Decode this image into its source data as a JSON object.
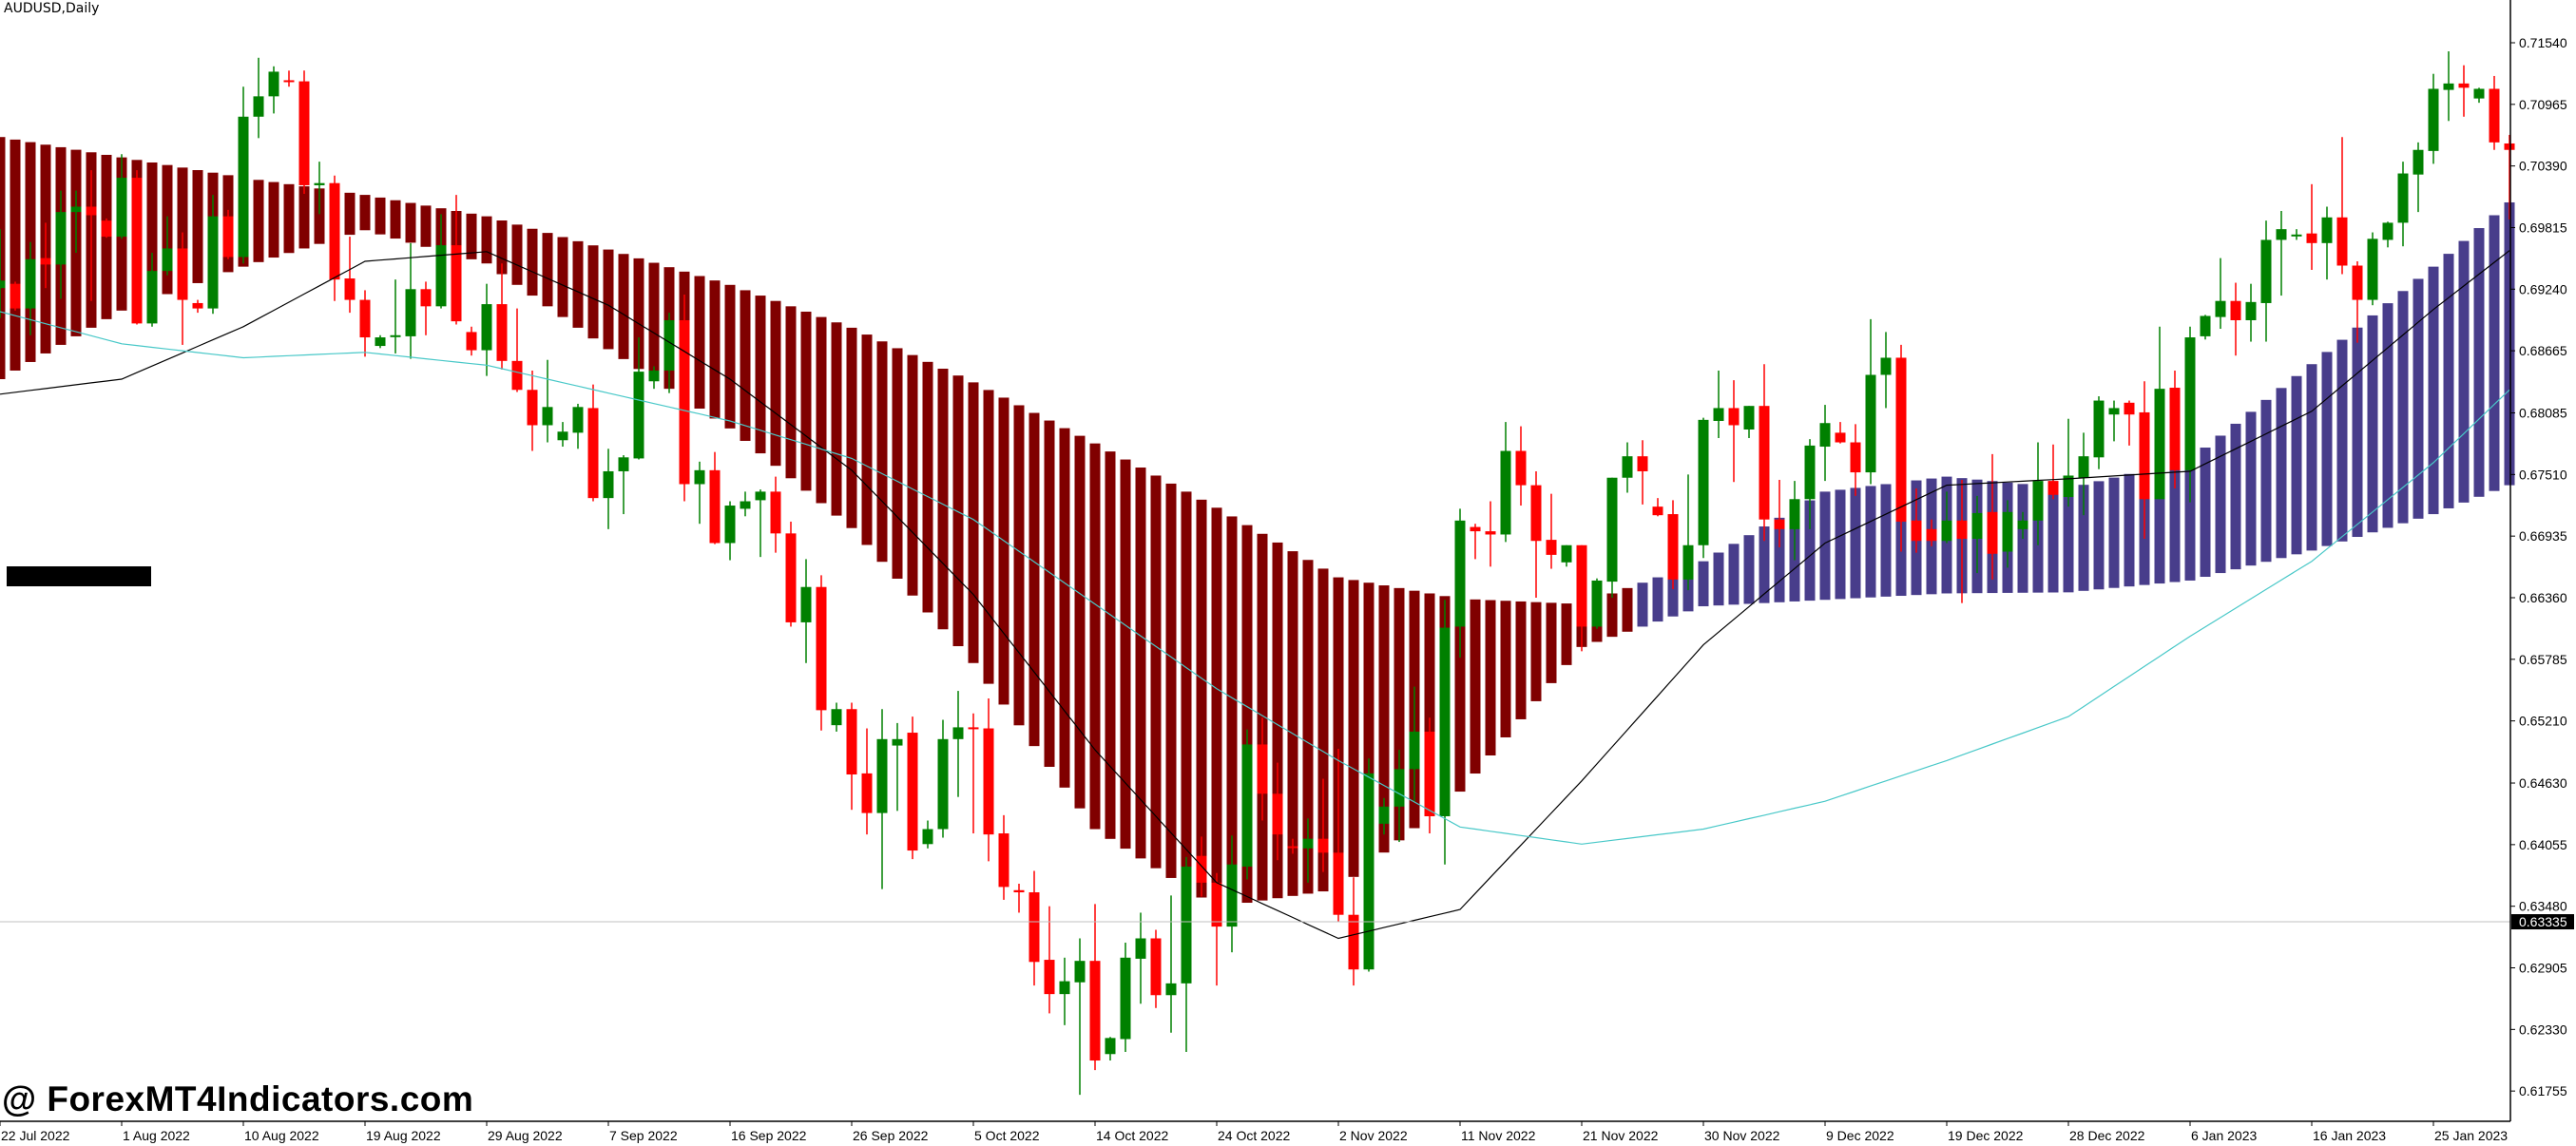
{
  "window": {
    "title": "AUDUSD,Daily",
    "watermark": "@ ForexMT4Indicators.com"
  },
  "colors": {
    "background": "#FFFFFF",
    "bull_candle": "#008000",
    "bear_candle": "#FF0000",
    "band_bearish": "#800000",
    "band_bullish": "#483D8B",
    "ma_fast": "#000000",
    "ma_slow": "#48C8C8",
    "current_price_line": "#C0C0C0",
    "axis": "#000000"
  },
  "chart_data": {
    "type": "candlestick",
    "title": "AUDUSD,Daily",
    "ylim": [
      0.61755,
      0.7154
    ],
    "grid": false,
    "current_price": "0.63335",
    "x_tick_labels": [
      "22 Jul 2022",
      "1 Aug 2022",
      "10 Aug 2022",
      "19 Aug 2022",
      "29 Aug 2022",
      "7 Sep 2022",
      "16 Sep 2022",
      "26 Sep 2022",
      "5 Oct 2022",
      "14 Oct 2022",
      "24 Oct 2022",
      "2 Nov 2022",
      "11 Nov 2022",
      "21 Nov 2022",
      "30 Nov 2022",
      "9 Dec 2022",
      "19 Dec 2022",
      "28 Dec 2022",
      "6 Jan 2023",
      "16 Jan 2023",
      "25 Jan 2023"
    ],
    "y_tick_labels": [
      "0.71540",
      "0.70965",
      "0.70390",
      "0.69815",
      "0.69240",
      "0.68665",
      "0.68085",
      "0.67510",
      "0.66935",
      "0.66360",
      "0.65785",
      "0.65210",
      "0.64630",
      "0.64055",
      "0.63480",
      "0.62905",
      "0.62330",
      "0.61755"
    ],
    "candles_ohlc": [
      [
        0.6925,
        0.698,
        0.6897,
        0.6932
      ],
      [
        0.6929,
        0.6931,
        0.6904,
        0.6906
      ],
      [
        0.6906,
        0.6968,
        0.6881,
        0.6952
      ],
      [
        0.6953,
        0.6986,
        0.6925,
        0.6947
      ],
      [
        0.6947,
        0.7016,
        0.6915,
        0.6996
      ],
      [
        0.6996,
        0.7016,
        0.6958,
        0.7001
      ],
      [
        0.7001,
        0.7035,
        0.6913,
        0.6993
      ],
      [
        0.6988,
        0.699,
        0.6972,
        0.6973
      ],
      [
        0.6973,
        0.705,
        0.6971,
        0.7028
      ],
      [
        0.7028,
        0.7035,
        0.6891,
        0.6892
      ],
      [
        0.6892,
        0.6958,
        0.6889,
        0.6941
      ],
      [
        0.6941,
        0.6992,
        0.6937,
        0.6962
      ],
      [
        0.6962,
        0.6977,
        0.6872,
        0.6914
      ],
      [
        0.6911,
        0.6914,
        0.6902,
        0.6906
      ],
      [
        0.6906,
        0.7012,
        0.6901,
        0.6992
      ],
      [
        0.6992,
        0.6998,
        0.6952,
        0.6954
      ],
      [
        0.6954,
        0.7113,
        0.6948,
        0.7085
      ],
      [
        0.7085,
        0.714,
        0.7065,
        0.7104
      ],
      [
        0.7104,
        0.7132,
        0.7088,
        0.7127
      ],
      [
        0.7119,
        0.7128,
        0.7113,
        0.7118
      ],
      [
        0.7118,
        0.7128,
        0.7013,
        0.7021
      ],
      [
        0.7021,
        0.7043,
        0.6994,
        0.7023
      ],
      [
        0.7023,
        0.703,
        0.6913,
        0.6933
      ],
      [
        0.6934,
        0.6973,
        0.6902,
        0.6914
      ],
      [
        0.6914,
        0.6923,
        0.6861,
        0.6879
      ],
      [
        0.6871,
        0.6881,
        0.6869,
        0.6879
      ],
      [
        0.688,
        0.6933,
        0.6864,
        0.6881
      ],
      [
        0.688,
        0.6967,
        0.6859,
        0.6924
      ],
      [
        0.6924,
        0.6931,
        0.6881,
        0.6908
      ],
      [
        0.6908,
        0.6994,
        0.6906,
        0.6965
      ],
      [
        0.6965,
        0.7012,
        0.6891,
        0.6894
      ],
      [
        0.6884,
        0.6889,
        0.6862,
        0.6867
      ],
      [
        0.6867,
        0.6929,
        0.6843,
        0.691
      ],
      [
        0.691,
        0.6948,
        0.6849,
        0.6857
      ],
      [
        0.6857,
        0.6906,
        0.6828,
        0.683
      ],
      [
        0.683,
        0.6848,
        0.6773,
        0.6797
      ],
      [
        0.6797,
        0.6858,
        0.6781,
        0.6814
      ],
      [
        0.6783,
        0.68,
        0.6777,
        0.6791
      ],
      [
        0.679,
        0.6817,
        0.6775,
        0.6814
      ],
      [
        0.6813,
        0.6835,
        0.6726,
        0.6729
      ],
      [
        0.6729,
        0.6775,
        0.67,
        0.6754
      ],
      [
        0.6754,
        0.6769,
        0.6714,
        0.6767
      ],
      [
        0.6766,
        0.6879,
        0.6765,
        0.6847
      ],
      [
        0.6838,
        0.6852,
        0.6831,
        0.6848
      ],
      [
        0.6848,
        0.6902,
        0.6827,
        0.6895
      ],
      [
        0.6895,
        0.6919,
        0.6726,
        0.6742
      ],
      [
        0.6742,
        0.6763,
        0.6705,
        0.6755
      ],
      [
        0.6755,
        0.6772,
        0.6686,
        0.6687
      ],
      [
        0.6687,
        0.6726,
        0.6671,
        0.6722
      ],
      [
        0.6719,
        0.6735,
        0.6712,
        0.6726
      ],
      [
        0.6727,
        0.6737,
        0.6674,
        0.6735
      ],
      [
        0.6735,
        0.6749,
        0.6678,
        0.6696
      ],
      [
        0.6696,
        0.6707,
        0.6609,
        0.6613
      ],
      [
        0.6613,
        0.6672,
        0.6575,
        0.6646
      ],
      [
        0.6646,
        0.6657,
        0.6512,
        0.6531
      ],
      [
        0.6517,
        0.6538,
        0.6511,
        0.6532
      ],
      [
        0.6532,
        0.6538,
        0.6438,
        0.6471
      ],
      [
        0.6472,
        0.6514,
        0.6415,
        0.6435
      ],
      [
        0.6435,
        0.6532,
        0.6364,
        0.6504
      ],
      [
        0.6498,
        0.6519,
        0.6437,
        0.6504
      ],
      [
        0.651,
        0.6525,
        0.6392,
        0.64
      ],
      [
        0.6406,
        0.6428,
        0.6402,
        0.642
      ],
      [
        0.642,
        0.6522,
        0.6412,
        0.6504
      ],
      [
        0.6504,
        0.6549,
        0.645,
        0.6515
      ],
      [
        0.6515,
        0.6528,
        0.6416,
        0.6514
      ],
      [
        0.6514,
        0.6542,
        0.639,
        0.6415
      ],
      [
        0.6416,
        0.6433,
        0.6354,
        0.6366
      ],
      [
        0.6363,
        0.6369,
        0.6342,
        0.6361
      ],
      [
        0.6361,
        0.6381,
        0.6274,
        0.6296
      ],
      [
        0.6298,
        0.6348,
        0.6248,
        0.6266
      ],
      [
        0.6266,
        0.63,
        0.6237,
        0.6278
      ],
      [
        0.6277,
        0.6318,
        0.6172,
        0.6297
      ],
      [
        0.6297,
        0.635,
        0.6195,
        0.6204
      ],
      [
        0.621,
        0.6226,
        0.6204,
        0.6225
      ],
      [
        0.6224,
        0.6314,
        0.6212,
        0.63
      ],
      [
        0.6299,
        0.6342,
        0.6257,
        0.6318
      ],
      [
        0.6318,
        0.6326,
        0.6253,
        0.6265
      ],
      [
        0.6265,
        0.6358,
        0.623,
        0.6276
      ],
      [
        0.6276,
        0.6394,
        0.6212,
        0.6385
      ],
      [
        0.6395,
        0.6413,
        0.6357,
        0.637
      ],
      [
        0.637,
        0.6379,
        0.6274,
        0.6329
      ],
      [
        0.6329,
        0.6414,
        0.6305,
        0.6387
      ],
      [
        0.6385,
        0.6513,
        0.6373,
        0.6499
      ],
      [
        0.6499,
        0.6524,
        0.6428,
        0.6453
      ],
      [
        0.6453,
        0.6482,
        0.6391,
        0.6415
      ],
      [
        0.6404,
        0.6411,
        0.6397,
        0.6403
      ],
      [
        0.6402,
        0.643,
        0.637,
        0.6411
      ],
      [
        0.6411,
        0.6467,
        0.638,
        0.6398
      ],
      [
        0.6398,
        0.6495,
        0.6334,
        0.634
      ],
      [
        0.634,
        0.6375,
        0.6274,
        0.6289
      ],
      [
        0.6289,
        0.6486,
        0.6287,
        0.6472
      ],
      [
        0.6425,
        0.6449,
        0.6415,
        0.6441
      ],
      [
        0.6441,
        0.6494,
        0.6408,
        0.6476
      ],
      [
        0.6476,
        0.6553,
        0.6446,
        0.6511
      ],
      [
        0.6511,
        0.6524,
        0.6416,
        0.6432
      ],
      [
        0.6432,
        0.6634,
        0.6387,
        0.6608
      ],
      [
        0.6609,
        0.6719,
        0.658,
        0.6708
      ],
      [
        0.6702,
        0.6705,
        0.6672,
        0.6698
      ],
      [
        0.6698,
        0.6726,
        0.6665,
        0.6695
      ],
      [
        0.6695,
        0.68,
        0.6688,
        0.6773
      ],
      [
        0.6773,
        0.6796,
        0.6722,
        0.6741
      ],
      [
        0.6741,
        0.6754,
        0.6636,
        0.6689
      ],
      [
        0.669,
        0.6733,
        0.6663,
        0.6676
      ],
      [
        0.6669,
        0.6685,
        0.6665,
        0.6685
      ],
      [
        0.6685,
        0.6685,
        0.6586,
        0.6609
      ],
      [
        0.6609,
        0.6654,
        0.6607,
        0.6652
      ],
      [
        0.6651,
        0.6748,
        0.6636,
        0.6748
      ],
      [
        0.6748,
        0.6781,
        0.6734,
        0.6768
      ],
      [
        0.6768,
        0.6783,
        0.6723,
        0.6754
      ],
      [
        0.6721,
        0.6729,
        0.6712,
        0.6713
      ],
      [
        0.6714,
        0.6727,
        0.6644,
        0.6653
      ],
      [
        0.6653,
        0.6751,
        0.6643,
        0.6685
      ],
      [
        0.6685,
        0.6804,
        0.6673,
        0.6802
      ],
      [
        0.6801,
        0.6848,
        0.6785,
        0.6813
      ],
      [
        0.6813,
        0.6839,
        0.6744,
        0.6797
      ],
      [
        0.6793,
        0.6815,
        0.6785,
        0.6815
      ],
      [
        0.6815,
        0.6854,
        0.6689,
        0.6709
      ],
      [
        0.6709,
        0.6746,
        0.6683,
        0.67
      ],
      [
        0.67,
        0.6745,
        0.6671,
        0.6728
      ],
      [
        0.6728,
        0.6784,
        0.67,
        0.6778
      ],
      [
        0.6777,
        0.6816,
        0.6745,
        0.6799
      ],
      [
        0.679,
        0.68,
        0.678,
        0.6781
      ],
      [
        0.6781,
        0.6798,
        0.6731,
        0.6753
      ],
      [
        0.6753,
        0.6896,
        0.6742,
        0.6844
      ],
      [
        0.6844,
        0.6884,
        0.6813,
        0.686
      ],
      [
        0.686,
        0.6872,
        0.6679,
        0.6707
      ],
      [
        0.6708,
        0.6738,
        0.6678,
        0.6689
      ],
      [
        0.67,
        0.6709,
        0.6684,
        0.6689
      ],
      [
        0.6689,
        0.6735,
        0.6687,
        0.6708
      ],
      [
        0.6708,
        0.6746,
        0.6631,
        0.6691
      ],
      [
        0.6691,
        0.6731,
        0.6659,
        0.6715
      ],
      [
        0.6716,
        0.677,
        0.6653,
        0.6677
      ],
      [
        0.6679,
        0.6727,
        0.6664,
        0.6716
      ],
      [
        0.67,
        0.6716,
        0.6691,
        0.6708
      ],
      [
        0.6708,
        0.6781,
        0.6685,
        0.6745
      ],
      [
        0.6745,
        0.6779,
        0.6728,
        0.6732
      ],
      [
        0.673,
        0.6803,
        0.6721,
        0.675
      ],
      [
        0.6748,
        0.679,
        0.6713,
        0.6768
      ],
      [
        0.6767,
        0.6824,
        0.6756,
        0.682
      ],
      [
        0.6807,
        0.682,
        0.6782,
        0.6813
      ],
      [
        0.6818,
        0.682,
        0.6778,
        0.6807
      ],
      [
        0.6809,
        0.6838,
        0.6691,
        0.6728
      ],
      [
        0.6728,
        0.6889,
        0.6728,
        0.6831
      ],
      [
        0.6832,
        0.6848,
        0.6738,
        0.6755
      ],
      [
        0.6755,
        0.6889,
        0.6725,
        0.6879
      ],
      [
        0.688,
        0.69,
        0.6877,
        0.6899
      ],
      [
        0.6898,
        0.6953,
        0.6887,
        0.6913
      ],
      [
        0.6913,
        0.693,
        0.6862,
        0.6895
      ],
      [
        0.6895,
        0.6929,
        0.6875,
        0.6912
      ],
      [
        0.6911,
        0.6988,
        0.6875,
        0.697
      ],
      [
        0.697,
        0.6997,
        0.6918,
        0.698
      ],
      [
        0.6974,
        0.698,
        0.697,
        0.6975
      ],
      [
        0.6976,
        0.7022,
        0.6942,
        0.6967
      ],
      [
        0.6967,
        0.7001,
        0.6933,
        0.6991
      ],
      [
        0.6991,
        0.7066,
        0.6938,
        0.6946
      ],
      [
        0.6946,
        0.695,
        0.6874,
        0.6914
      ],
      [
        0.6914,
        0.6977,
        0.6909,
        0.6971
      ],
      [
        0.697,
        0.6987,
        0.6963,
        0.6986
      ],
      [
        0.6986,
        0.7043,
        0.6964,
        0.7032
      ],
      [
        0.7031,
        0.7061,
        0.6996,
        0.7054
      ],
      [
        0.7053,
        0.7125,
        0.7041,
        0.7111
      ],
      [
        0.711,
        0.7146,
        0.7081,
        0.7116
      ],
      [
        0.7116,
        0.7133,
        0.7085,
        0.7112
      ],
      [
        0.7102,
        0.7112,
        0.7098,
        0.7111
      ],
      [
        0.7111,
        0.7123,
        0.7054,
        0.7061
      ],
      [
        0.706,
        0.7068,
        0.6989,
        0.7054
      ]
    ],
    "indicator_band_at_x_ticks": {
      "upper": [
        0.7066,
        0.7047,
        0.7028,
        0.7012,
        0.6992,
        0.6961,
        0.6928,
        0.6888,
        0.6837,
        0.678,
        0.672,
        0.6655,
        0.6635,
        0.663,
        0.667,
        0.6735,
        0.6749,
        0.6738,
        0.6765,
        0.6854,
        0.6945
      ],
      "lower": [
        0.684,
        0.6904,
        0.6945,
        0.6979,
        0.6948,
        0.6868,
        0.6794,
        0.6701,
        0.6575,
        0.642,
        0.6347,
        0.6364,
        0.6455,
        0.659,
        0.6628,
        0.6634,
        0.664,
        0.6641,
        0.6652,
        0.668,
        0.6714
      ],
      "state": [
        "bearish",
        "bearish",
        "bearish",
        "bearish",
        "bearish",
        "bearish",
        "bearish",
        "bearish",
        "bearish",
        "bearish",
        "bearish",
        "bearish",
        "bearish",
        "bearish",
        "bullish",
        "bullish",
        "bullish",
        "bullish",
        "bullish",
        "bullish",
        "bullish"
      ],
      "last_upper": 0.7005,
      "last_lower": 0.6741
    },
    "moving_averages": [
      {
        "color": "#000000",
        "values_at_x_ticks": [
          0.6826,
          0.684,
          0.6889,
          0.695,
          0.6959,
          0.6909,
          0.684,
          0.6755,
          0.6639,
          0.6494,
          0.637,
          0.6318,
          0.6345,
          0.6465,
          0.6592,
          0.6687,
          0.6741,
          0.6747,
          0.6754,
          0.681,
          0.6905
        ],
        "last_value": 0.696
      },
      {
        "color": "#48C8C8",
        "values_at_x_ticks": [
          0.6903,
          0.6873,
          0.686,
          0.6865,
          0.6853,
          0.6827,
          0.6801,
          0.6766,
          0.6709,
          0.663,
          0.6551,
          0.6484,
          0.6422,
          0.6406,
          0.642,
          0.6446,
          0.6484,
          0.6525,
          0.66,
          0.667,
          0.6762
        ],
        "last_value": 0.683
      }
    ]
  }
}
